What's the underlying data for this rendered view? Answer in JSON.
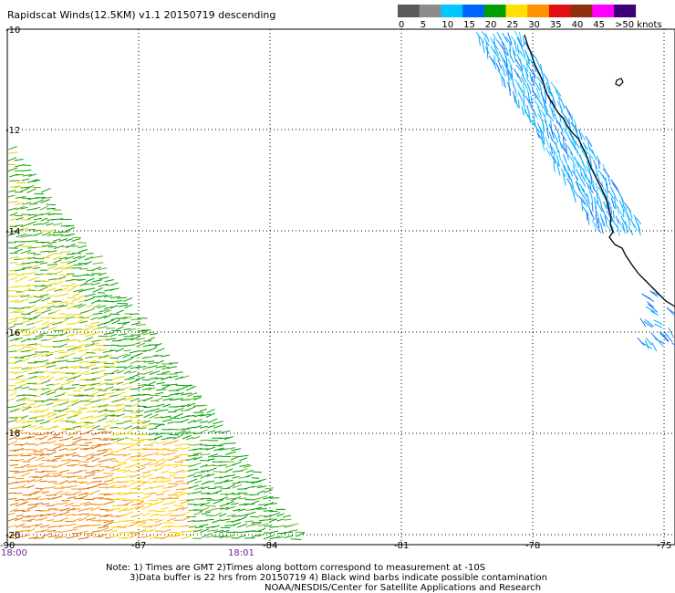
{
  "title": "Rapidscat Winds(12.5KM) v1.1 20150719 descending",
  "legend": {
    "labels": [
      "0",
      "5",
      "10",
      "15",
      "20",
      "25",
      "30",
      "35",
      "40",
      "45",
      ">50 knots"
    ],
    "colors": [
      "#595959",
      "#8c8c8c",
      "#00c8ff",
      "#0064ff",
      "#00a000",
      "#ffe000",
      "#ff9000",
      "#e01010",
      "#8c3010",
      "#ff00ff",
      "#3c0078"
    ]
  },
  "axes": {
    "lat_labels": [
      "-10",
      "-12",
      "-14",
      "-16",
      "-18",
      "-20"
    ],
    "lon_labels": [
      "-90",
      "-87",
      "-84",
      "-81",
      "-78",
      "-75"
    ]
  },
  "times": {
    "start": "18:00",
    "end": "18:01",
    "color": "#7a1fa2"
  },
  "notes": [
    "Note: 1) Times are GMT 2)Times along bottom correspond to measurement at -10S",
    "3)Data buffer is 22 hrs from 20150719 4) Black wind barbs indicate possible contamination",
    "NOAA/NESDIS/Center for Satellite Applications and Research"
  ],
  "colors": {
    "coast": "#000000",
    "grid": "#000000"
  }
}
